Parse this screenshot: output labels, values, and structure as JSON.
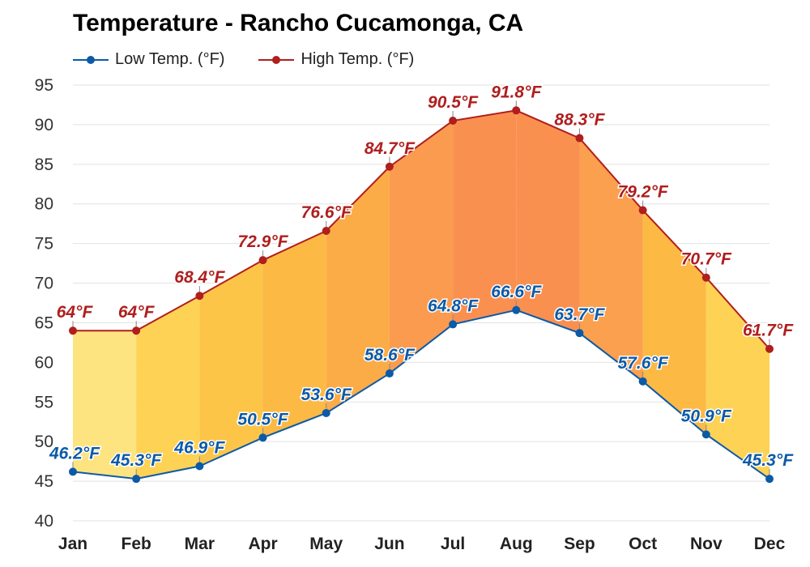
{
  "chart_data": {
    "type": "area",
    "title": "Temperature - Rancho Cucamonga, CA",
    "xlabel": "",
    "ylabel": "",
    "categories": [
      "Jan",
      "Feb",
      "Mar",
      "Apr",
      "May",
      "Jun",
      "Jul",
      "Aug",
      "Sep",
      "Oct",
      "Nov",
      "Dec"
    ],
    "ylim": [
      40,
      95
    ],
    "yticks": [
      40,
      45,
      50,
      55,
      60,
      65,
      70,
      75,
      80,
      85,
      90,
      95
    ],
    "grid": true,
    "legend_position": "top-left",
    "series": [
      {
        "name": "Low Temp. (°F)",
        "color": "#0b5aa8",
        "values": [
          46.2,
          45.3,
          46.9,
          50.5,
          53.6,
          58.6,
          64.8,
          66.6,
          63.7,
          57.6,
          50.9,
          45.3
        ],
        "labels": [
          "46.2°F",
          "45.3°F",
          "46.9°F",
          "50.5°F",
          "53.6°F",
          "58.6°F",
          "64.8°F",
          "66.6°F",
          "63.7°F",
          "57.6°F",
          "50.9°F",
          "45.3°F"
        ]
      },
      {
        "name": "High Temp. (°F)",
        "color": "#b01e1e",
        "values": [
          64,
          64,
          68.4,
          72.9,
          76.6,
          84.7,
          90.5,
          91.8,
          88.3,
          79.2,
          70.7,
          61.7
        ],
        "labels": [
          "64°F",
          "64°F",
          "68.4°F",
          "72.9°F",
          "76.6°F",
          "84.7°F",
          "90.5°F",
          "91.8°F",
          "88.3°F",
          "79.2°F",
          "70.7°F",
          "61.7°F"
        ]
      }
    ],
    "band_colors": [
      "#fde37a",
      "#fdd04c",
      "#fdc23e",
      "#fcb53a",
      "#fca83d",
      "#fb9646",
      "#fa8a47",
      "#fa8a47",
      "#fb9b45",
      "#fcb53a",
      "#fdd04c",
      "#fde68a"
    ]
  }
}
